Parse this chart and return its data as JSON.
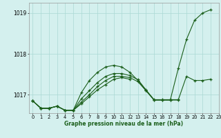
{
  "title": "Graphe pression niveau de la mer (hPa)",
  "background_color": "#d4f0ee",
  "grid_color": "#aad8d4",
  "line_color": "#1a5e1a",
  "xlim": [
    -0.5,
    23.0
  ],
  "ylim": [
    1016.55,
    1019.25
  ],
  "yticks": [
    1017,
    1018,
    1019
  ],
  "xticks": [
    0,
    1,
    2,
    3,
    4,
    5,
    6,
    7,
    8,
    9,
    10,
    11,
    12,
    13,
    14,
    15,
    16,
    17,
    18,
    19,
    20,
    21,
    22,
    23
  ],
  "series": [
    {
      "x": [
        0,
        1,
        2,
        3,
        4,
        5,
        6,
        7,
        8,
        9,
        10,
        11,
        12,
        13,
        14,
        15,
        16,
        17,
        18,
        19,
        20,
        21,
        22
      ],
      "y": [
        1016.85,
        1016.67,
        1016.67,
        1016.72,
        1016.62,
        1016.62,
        1017.05,
        1017.35,
        1017.55,
        1017.68,
        1017.72,
        1017.68,
        1017.55,
        1017.35,
        1017.1,
        1016.87,
        1016.87,
        1016.87,
        1017.65,
        1018.35,
        1018.82,
        1019.0,
        1019.08
      ]
    },
    {
      "x": [
        0,
        1,
        2,
        3,
        4,
        5,
        6,
        7,
        8,
        9,
        10,
        11,
        12,
        13,
        14,
        15,
        16,
        17,
        18,
        19,
        20,
        21,
        22
      ],
      "y": [
        1016.85,
        1016.67,
        1016.67,
        1016.72,
        1016.62,
        1016.62,
        1016.9,
        1017.1,
        1017.3,
        1017.45,
        1017.52,
        1017.52,
        1017.47,
        1017.37,
        1017.12,
        1016.88,
        1016.88,
        1016.88,
        1016.88,
        1017.45,
        1017.35,
        1017.35,
        1017.38
      ]
    },
    {
      "x": [
        0,
        1,
        2,
        3,
        4,
        5,
        6,
        7,
        8,
        9,
        10,
        11,
        12,
        13,
        14,
        15,
        16,
        17,
        18
      ],
      "y": [
        1016.85,
        1016.67,
        1016.67,
        1016.72,
        1016.62,
        1016.62,
        1016.82,
        1017.0,
        1017.2,
        1017.35,
        1017.45,
        1017.45,
        1017.42,
        1017.32,
        1017.1,
        1016.87,
        1016.87,
        1016.87,
        1016.87
      ]
    },
    {
      "x": [
        0,
        1,
        2,
        3,
        4,
        5,
        6,
        7,
        8,
        9,
        10,
        11,
        12
      ],
      "y": [
        1016.85,
        1016.67,
        1016.67,
        1016.72,
        1016.62,
        1016.62,
        1016.78,
        1016.95,
        1017.12,
        1017.25,
        1017.38,
        1017.42,
        1017.38
      ]
    }
  ]
}
